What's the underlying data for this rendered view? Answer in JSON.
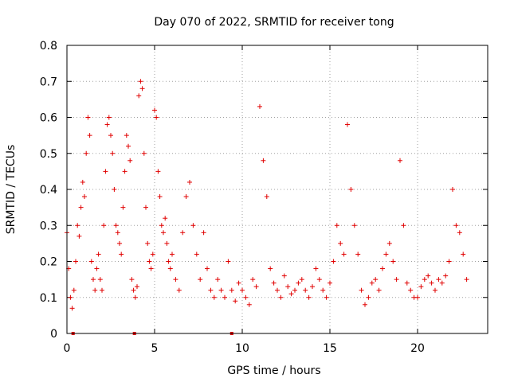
{
  "chart_data": {
    "type": "scatter",
    "title": "Day 070 of 2022, SRMTID for receiver tong",
    "xlabel": "GPS time / hours",
    "ylabel": "SRMTID / TECUs",
    "xlim": [
      0,
      24
    ],
    "ylim": [
      0,
      0.8
    ],
    "xticks": [
      0,
      5,
      10,
      15,
      20
    ],
    "xtick_labels": [
      "0",
      "5",
      "10",
      "15",
      "20"
    ],
    "yticks": [
      0,
      0.1,
      0.2,
      0.3,
      0.4,
      0.5,
      0.6,
      0.7,
      0.8
    ],
    "ytick_labels": [
      "0",
      "0.1",
      "0.2",
      "0.3",
      "0.4",
      "0.5",
      "0.6",
      "0.7",
      "0.8"
    ],
    "grid": true,
    "marker": "+",
    "color": "#e00000",
    "series": [
      {
        "name": "SRMTID",
        "x": [
          0.0,
          0.1,
          0.2,
          0.3,
          0.4,
          0.5,
          0.6,
          0.7,
          0.8,
          0.9,
          1.0,
          1.1,
          1.2,
          1.3,
          1.4,
          1.5,
          1.6,
          1.7,
          1.8,
          1.9,
          2.0,
          2.1,
          2.2,
          2.3,
          2.4,
          2.5,
          2.6,
          2.7,
          2.8,
          2.9,
          3.0,
          3.1,
          3.2,
          3.3,
          3.4,
          3.5,
          3.6,
          3.7,
          3.8,
          3.9,
          4.0,
          4.1,
          4.2,
          4.3,
          4.4,
          4.5,
          4.6,
          4.7,
          4.8,
          4.9,
          5.0,
          5.1,
          5.2,
          5.3,
          5.4,
          5.5,
          5.6,
          5.7,
          5.8,
          5.9,
          6.0,
          6.2,
          6.4,
          6.6,
          6.8,
          7.0,
          7.2,
          7.4,
          7.6,
          7.8,
          8.0,
          8.2,
          8.4,
          8.6,
          8.8,
          9.0,
          9.2,
          9.4,
          9.6,
          9.8,
          10.0,
          10.2,
          10.4,
          10.6,
          10.8,
          11.0,
          11.2,
          11.4,
          11.6,
          11.8,
          12.0,
          12.2,
          12.4,
          12.6,
          12.8,
          13.0,
          13.2,
          13.4,
          13.6,
          13.8,
          14.0,
          14.2,
          14.4,
          14.6,
          14.8,
          15.0,
          15.2,
          15.4,
          15.6,
          15.8,
          16.0,
          16.2,
          16.4,
          16.6,
          16.8,
          17.0,
          17.2,
          17.4,
          17.6,
          17.8,
          18.0,
          18.2,
          18.4,
          18.6,
          18.8,
          19.0,
          19.2,
          19.4,
          19.6,
          19.8,
          20.0,
          20.2,
          20.4,
          20.6,
          20.8,
          21.0,
          21.2,
          21.4,
          21.6,
          21.8,
          22.0,
          22.2,
          22.4,
          22.6,
          22.8
        ],
        "y": [
          0.28,
          0.18,
          0.1,
          0.07,
          0.12,
          0.2,
          0.3,
          0.27,
          0.35,
          0.42,
          0.38,
          0.5,
          0.6,
          0.55,
          0.2,
          0.15,
          0.12,
          0.18,
          0.22,
          0.15,
          0.12,
          0.3,
          0.45,
          0.58,
          0.6,
          0.55,
          0.5,
          0.4,
          0.3,
          0.28,
          0.25,
          0.22,
          0.35,
          0.45,
          0.55,
          0.52,
          0.48,
          0.15,
          0.12,
          0.1,
          0.13,
          0.66,
          0.7,
          0.68,
          0.5,
          0.35,
          0.25,
          0.2,
          0.18,
          0.22,
          0.62,
          0.6,
          0.45,
          0.38,
          0.3,
          0.28,
          0.32,
          0.25,
          0.2,
          0.18,
          0.22,
          0.15,
          0.12,
          0.28,
          0.38,
          0.42,
          0.3,
          0.22,
          0.15,
          0.28,
          0.18,
          0.12,
          0.1,
          0.15,
          0.12,
          0.1,
          0.2,
          0.12,
          0.09,
          0.14,
          0.12,
          0.1,
          0.08,
          0.15,
          0.13,
          0.63,
          0.48,
          0.38,
          0.18,
          0.14,
          0.12,
          0.1,
          0.16,
          0.13,
          0.11,
          0.12,
          0.14,
          0.15,
          0.12,
          0.1,
          0.13,
          0.18,
          0.15,
          0.12,
          0.1,
          0.14,
          0.2,
          0.3,
          0.25,
          0.22,
          0.58,
          0.4,
          0.3,
          0.22,
          0.12,
          0.08,
          0.1,
          0.14,
          0.15,
          0.12,
          0.18,
          0.22,
          0.25,
          0.2,
          0.15,
          0.48,
          0.3,
          0.14,
          0.12,
          0.1,
          0.1,
          0.13,
          0.15,
          0.16,
          0.14,
          0.12,
          0.15,
          0.14,
          0.16,
          0.2,
          0.4,
          0.3,
          0.28,
          0.22,
          0.15
        ]
      }
    ],
    "gap_markers_x": [
      0.35,
      3.85,
      9.4
    ]
  }
}
